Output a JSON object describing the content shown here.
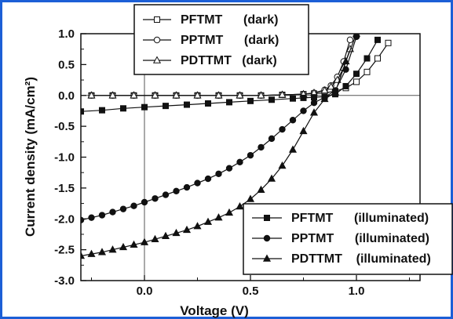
{
  "chart_data": {
    "type": "line",
    "xlabel": "Voltage (V)",
    "ylabel": "Current density (mA/cm²)",
    "xlim": [
      -0.3,
      1.3
    ],
    "ylim": [
      -3.0,
      1.0
    ],
    "x_ticks": [
      "0.0",
      "0.5",
      "1.0"
    ],
    "y_ticks": [
      "1.0",
      "0.5",
      "0.0",
      "-0.5",
      "-1.0",
      "-1.5",
      "-2.0",
      "-2.5",
      "-3.0"
    ],
    "legend_dark": [
      "PFTMT      (dark)",
      "PPTMT      (dark)",
      "PDTTMT   (dark)"
    ],
    "legend_illuminated": [
      "PFTMT      (illuminated)",
      "PPTMT      (illuminated)",
      "PDTTMT    (illuminated)"
    ],
    "series": [
      {
        "name": "PFTMT (dark)",
        "marker": "square-open",
        "x": [
          -0.25,
          -0.15,
          -0.05,
          0.05,
          0.15,
          0.25,
          0.35,
          0.45,
          0.55,
          0.65,
          0.75,
          0.8,
          0.85,
          0.9,
          0.95,
          1.0,
          1.05,
          1.1,
          1.15
        ],
        "y": [
          0,
          0,
          0,
          0,
          0,
          0,
          0,
          0,
          0,
          0.01,
          0.02,
          0.03,
          0.04,
          0.07,
          0.12,
          0.22,
          0.38,
          0.6,
          0.85
        ]
      },
      {
        "name": "PPTMT (dark)",
        "marker": "circle-open",
        "x": [
          -0.25,
          -0.15,
          -0.05,
          0.05,
          0.15,
          0.25,
          0.35,
          0.45,
          0.55,
          0.65,
          0.75,
          0.8,
          0.85,
          0.88,
          0.91,
          0.94,
          0.97
        ],
        "y": [
          0,
          0,
          0,
          0,
          0,
          0,
          0,
          0,
          0,
          0.01,
          0.02,
          0.04,
          0.09,
          0.16,
          0.3,
          0.55,
          0.9
        ]
      },
      {
        "name": "PDTTMT (dark)",
        "marker": "triangle-open",
        "x": [
          -0.25,
          -0.15,
          -0.05,
          0.05,
          0.15,
          0.25,
          0.35,
          0.45,
          0.55,
          0.65,
          0.75,
          0.8,
          0.85,
          0.88,
          0.91,
          0.94,
          0.97
        ],
        "y": [
          0,
          0,
          0,
          0,
          0,
          0,
          0,
          0,
          0,
          0.01,
          0.02,
          0.04,
          0.08,
          0.14,
          0.25,
          0.45,
          0.75
        ]
      },
      {
        "name": "PFTMT (illuminated)",
        "marker": "square-filled",
        "x": [
          -0.3,
          -0.2,
          -0.1,
          0,
          0.1,
          0.2,
          0.3,
          0.4,
          0.5,
          0.6,
          0.7,
          0.75,
          0.8,
          0.85,
          0.9,
          0.95,
          1.0,
          1.05,
          1.1
        ],
        "y": [
          -0.26,
          -0.24,
          -0.21,
          -0.19,
          -0.17,
          -0.15,
          -0.13,
          -0.11,
          -0.09,
          -0.07,
          -0.05,
          -0.04,
          -0.03,
          -0.02,
          0.02,
          0.15,
          0.35,
          0.6,
          0.9
        ]
      },
      {
        "name": "PPTMT (illuminated)",
        "marker": "circle-filled",
        "x": [
          -0.3,
          -0.25,
          -0.2,
          -0.15,
          -0.1,
          -0.05,
          0,
          0.05,
          0.1,
          0.15,
          0.2,
          0.25,
          0.3,
          0.35,
          0.4,
          0.45,
          0.5,
          0.55,
          0.6,
          0.65,
          0.7,
          0.75,
          0.8,
          0.85,
          0.9,
          0.95,
          1.0
        ],
        "y": [
          -2.02,
          -1.98,
          -1.94,
          -1.89,
          -1.84,
          -1.79,
          -1.73,
          -1.67,
          -1.61,
          -1.55,
          -1.49,
          -1.42,
          -1.35,
          -1.27,
          -1.18,
          -1.08,
          -0.97,
          -0.84,
          -0.7,
          -0.55,
          -0.4,
          -0.25,
          -0.12,
          -0.03,
          0.08,
          0.42,
          0.95
        ]
      },
      {
        "name": "PDTTMT (illuminated)",
        "marker": "triangle-filled",
        "x": [
          -0.3,
          -0.25,
          -0.2,
          -0.15,
          -0.1,
          -0.05,
          0,
          0.05,
          0.1,
          0.15,
          0.2,
          0.25,
          0.3,
          0.35,
          0.4,
          0.45,
          0.5,
          0.55,
          0.6,
          0.65,
          0.7,
          0.75,
          0.8,
          0.85,
          0.9,
          0.95,
          1.0
        ],
        "y": [
          -2.6,
          -2.57,
          -2.54,
          -2.5,
          -2.46,
          -2.42,
          -2.38,
          -2.33,
          -2.28,
          -2.23,
          -2.18,
          -2.12,
          -2.05,
          -1.98,
          -1.9,
          -1.8,
          -1.68,
          -1.53,
          -1.35,
          -1.14,
          -0.88,
          -0.58,
          -0.28,
          -0.06,
          0.05,
          0.55,
          1.0
        ]
      }
    ]
  }
}
